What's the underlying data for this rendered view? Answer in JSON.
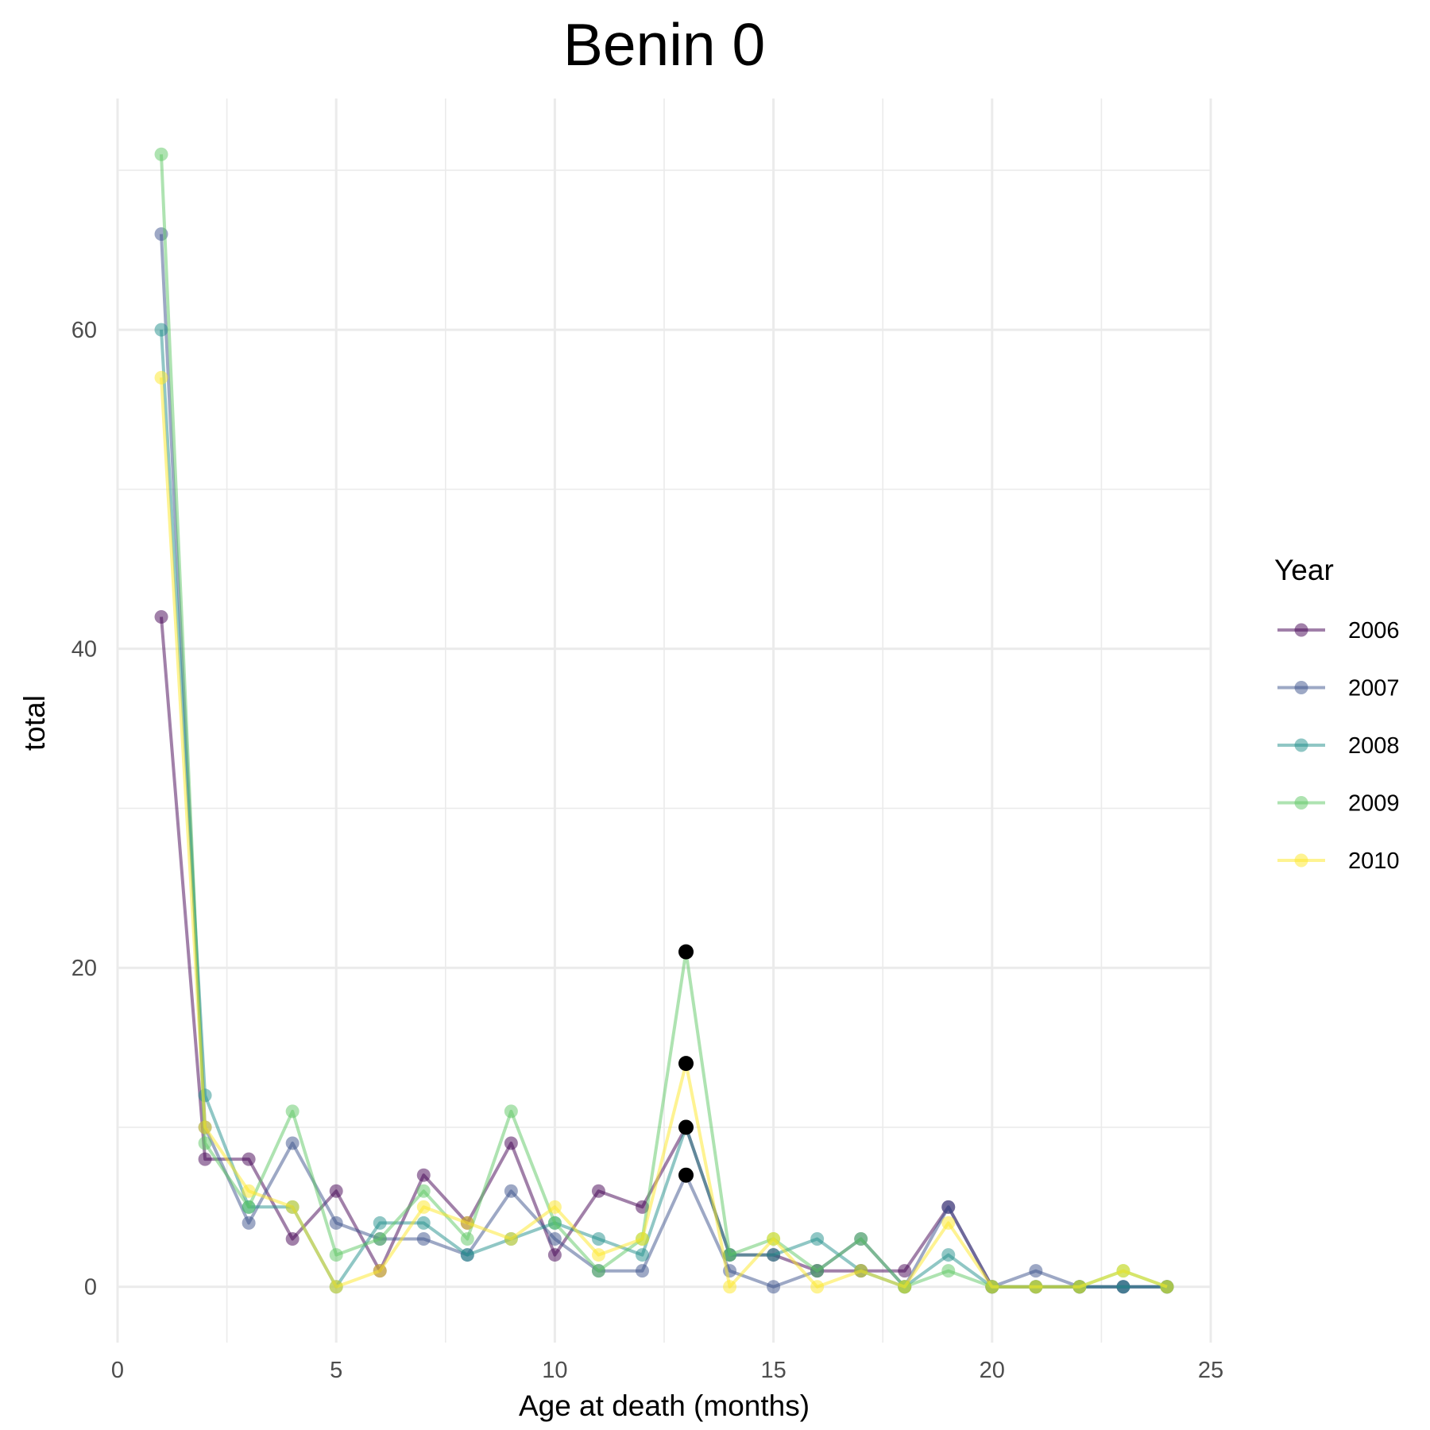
{
  "chart_data": {
    "type": "line",
    "title": "Benin 0",
    "xlabel": "Age at death (months)",
    "ylabel": "total",
    "xlim": [
      0,
      25
    ],
    "ylim": [
      -3.5,
      74.5
    ],
    "x_ticks": [
      0,
      5,
      10,
      15,
      20,
      25
    ],
    "y_ticks": [
      0,
      20,
      40,
      60
    ],
    "grid": true,
    "legend": {
      "title": "Year",
      "position": "right"
    },
    "x": [
      1,
      2,
      3,
      4,
      5,
      6,
      7,
      8,
      9,
      10,
      11,
      12,
      13,
      14,
      15,
      16,
      17,
      18,
      19,
      20,
      21,
      22,
      23,
      24
    ],
    "series": [
      {
        "name": "2006",
        "color": "#440154",
        "values": [
          42,
          8,
          8,
          3,
          6,
          1,
          7,
          4,
          9,
          2,
          6,
          5,
          10,
          2,
          2,
          1,
          1,
          1,
          5,
          0,
          0,
          0,
          0,
          0
        ]
      },
      {
        "name": "2007",
        "color": "#3B528B",
        "values": [
          66,
          10,
          4,
          9,
          4,
          3,
          3,
          2,
          6,
          3,
          1,
          1,
          7,
          1,
          0,
          1,
          3,
          0,
          5,
          0,
          1,
          0,
          0,
          0
        ]
      },
      {
        "name": "2008",
        "color": "#21908C",
        "values": [
          60,
          12,
          5,
          5,
          0,
          4,
          4,
          2,
          3,
          4,
          3,
          2,
          10,
          2,
          2,
          3,
          1,
          0,
          2,
          0,
          0,
          0,
          0,
          0
        ]
      },
      {
        "name": "2009",
        "color": "#5DC863",
        "values": [
          71,
          9,
          5,
          11,
          2,
          3,
          6,
          3,
          11,
          4,
          1,
          3,
          21,
          2,
          3,
          1,
          3,
          0,
          1,
          0,
          0,
          0,
          1,
          0
        ]
      },
      {
        "name": "2010",
        "color": "#FDE725",
        "values": [
          57,
          10,
          6,
          5,
          0,
          1,
          5,
          4,
          3,
          5,
          2,
          3,
          14,
          0,
          3,
          0,
          1,
          0,
          4,
          0,
          0,
          0,
          1,
          0
        ]
      }
    ],
    "highlight_points": [
      {
        "x": 13,
        "y": 21
      },
      {
        "x": 13,
        "y": 14
      },
      {
        "x": 13,
        "y": 10
      },
      {
        "x": 13,
        "y": 7
      }
    ]
  }
}
